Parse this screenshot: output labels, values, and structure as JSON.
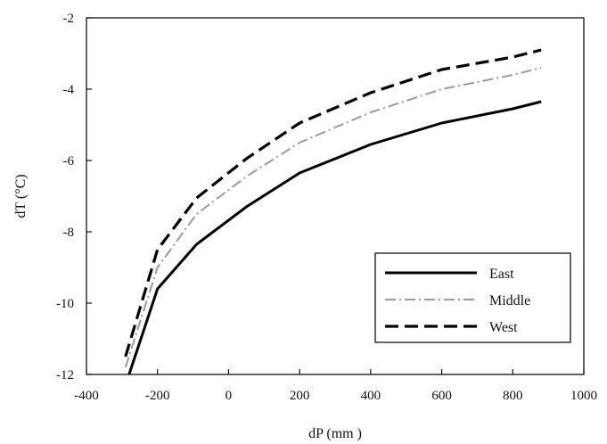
{
  "chart_data": {
    "type": "line",
    "title": "",
    "xlabel": "dP (mm )",
    "ylabel": "dT (°C)",
    "xlim": [
      -400,
      1000
    ],
    "ylim": [
      -12,
      -2
    ],
    "xticks": [
      -400,
      -200,
      0,
      200,
      400,
      600,
      800,
      1000
    ],
    "yticks": [
      -12,
      -10,
      -8,
      -6,
      -4,
      -2
    ],
    "grid": false,
    "legend": "bottom-right",
    "series": [
      {
        "name": "East",
        "color": "#000000",
        "dash": "solid",
        "points": [
          [
            -280,
            -12.0
          ],
          [
            -200,
            -9.6
          ],
          [
            -90,
            -8.35
          ],
          [
            50,
            -7.3
          ],
          [
            200,
            -6.35
          ],
          [
            400,
            -5.55
          ],
          [
            600,
            -4.95
          ],
          [
            800,
            -4.55
          ],
          [
            880,
            -4.35
          ]
        ]
      },
      {
        "name": "Middle",
        "color": "#9a9a9a",
        "dash": "dashed",
        "points": [
          [
            -290,
            -11.8
          ],
          [
            -200,
            -9.0
          ],
          [
            -90,
            -7.5
          ],
          [
            50,
            -6.45
          ],
          [
            200,
            -5.5
          ],
          [
            400,
            -4.65
          ],
          [
            600,
            -4.0
          ],
          [
            800,
            -3.6
          ],
          [
            880,
            -3.4
          ]
        ]
      },
      {
        "name": "West",
        "color": "#000000",
        "dash": "dashed",
        "points": [
          [
            -290,
            -11.5
          ],
          [
            -200,
            -8.5
          ],
          [
            -90,
            -7.05
          ],
          [
            50,
            -5.95
          ],
          [
            200,
            -4.95
          ],
          [
            400,
            -4.1
          ],
          [
            600,
            -3.45
          ],
          [
            800,
            -3.1
          ],
          [
            880,
            -2.9
          ]
        ]
      }
    ]
  }
}
